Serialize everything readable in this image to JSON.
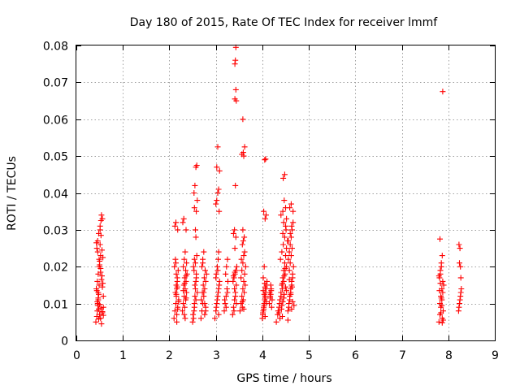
{
  "chart_data": {
    "type": "scatter",
    "title": "Day 180 of 2015, Rate Of TEC Index for receiver lmmf",
    "xlabel": "GPS time / hours",
    "ylabel": "ROTI / TECUs",
    "xlim": [
      0,
      9
    ],
    "ylim": [
      0,
      0.08
    ],
    "xticks": [
      "0",
      "1",
      "2",
      "3",
      "4",
      "5",
      "6",
      "7",
      "8",
      "9"
    ],
    "yticks": [
      "0",
      "0.01",
      "0.02",
      "0.03",
      "0.04",
      "0.05",
      "0.06",
      "0.07",
      "0.08"
    ],
    "grid": true,
    "marker": "+",
    "color": "#ff0000",
    "series": [
      {
        "name": "ROTI",
        "x": [
          0.42,
          0.44,
          0.45,
          0.46,
          0.47,
          0.48,
          0.43,
          0.45,
          0.47,
          0.49,
          0.5,
          0.52,
          0.44,
          0.46,
          0.48,
          0.51,
          0.53,
          0.55,
          0.57,
          0.5,
          0.52,
          0.54,
          0.56,
          0.58,
          0.46,
          0.48,
          0.5,
          0.52,
          0.54,
          0.56,
          0.58,
          0.45,
          0.47,
          0.49,
          0.51,
          0.53,
          0.43,
          0.46,
          0.49,
          0.52,
          0.55,
          0.57,
          0.44,
          0.47,
          0.5,
          0.53,
          0.56,
          0.58,
          0.48,
          0.51,
          0.54,
          0.56,
          2.1,
          2.12,
          2.14,
          2.15,
          2.16,
          2.17,
          2.11,
          2.13,
          2.15,
          2.18,
          2.12,
          2.14,
          2.16,
          2.18,
          2.2,
          2.13,
          2.15,
          2.17,
          2.19,
          2.14,
          2.16,
          2.18,
          2.2,
          2.15,
          2.17,
          2.28,
          2.3,
          2.32,
          2.34,
          2.36,
          2.38,
          2.3,
          2.32,
          2.34,
          2.36,
          2.29,
          2.31,
          2.33,
          2.35,
          2.37,
          2.31,
          2.33,
          2.35,
          2.37,
          2.32,
          2.34,
          2.36,
          2.3,
          2.33,
          2.36,
          2.5,
          2.52,
          2.53,
          2.54,
          2.55,
          2.56,
          2.57,
          2.58,
          2.52,
          2.54,
          2.56,
          2.58,
          2.6,
          2.53,
          2.55,
          2.57,
          2.59,
          2.51,
          2.54,
          2.57,
          2.6,
          2.55,
          2.58,
          2.53,
          2.56,
          2.59,
          2.54,
          2.57,
          2.68,
          2.7,
          2.72,
          2.74,
          2.76,
          2.78,
          2.8,
          2.7,
          2.72,
          2.74,
          2.76,
          2.78,
          2.69,
          2.71,
          2.73,
          2.75,
          2.77,
          2.72,
          2.74,
          2.76,
          2.78,
          2.98,
          3.0,
          3.02,
          3.04,
          3.06,
          3.08,
          3.01,
          3.03,
          3.05,
          3.07,
          3.0,
          3.02,
          3.04,
          3.06,
          3.08,
          3.02,
          3.04,
          3.06,
          3.01,
          3.03,
          3.05,
          3.07,
          3.0,
          3.04,
          3.06,
          3.18,
          3.2,
          3.22,
          3.24,
          3.26,
          3.21,
          3.23,
          3.25,
          3.19,
          3.22,
          3.25,
          3.36,
          3.38,
          3.4,
          3.42,
          3.44,
          3.39,
          3.41,
          3.43,
          3.45,
          3.37,
          3.4,
          3.42,
          3.44,
          3.39,
          3.41,
          3.43,
          3.38,
          3.4,
          3.42,
          3.44,
          3.41,
          3.43,
          3.41,
          3.42,
          3.43,
          3.38,
          3.41,
          3.52,
          3.54,
          3.56,
          3.58,
          3.6,
          3.62,
          3.64,
          3.55,
          3.57,
          3.59,
          3.61,
          3.63,
          3.54,
          3.56,
          3.58,
          3.6,
          3.62,
          3.57,
          3.59,
          3.61,
          3.58,
          3.6,
          3.56,
          3.59,
          3.62,
          3.58,
          3.6,
          3.57,
          4.0,
          4.02,
          4.04,
          4.06,
          4.08,
          4.1,
          4.01,
          4.03,
          4.05,
          4.07,
          4.09,
          4.02,
          4.04,
          4.06,
          4.08,
          4.03,
          4.05,
          4.07,
          4.01,
          4.04,
          4.06,
          4.02,
          4.05,
          4.08,
          4.04,
          4.06,
          4.03,
          4.06,
          4.15,
          4.17,
          4.19,
          4.21,
          4.16,
          4.18,
          4.2,
          4.17,
          4.19,
          4.18,
          4.3,
          4.33,
          4.36,
          4.38,
          4.4,
          4.42,
          4.44,
          4.46,
          4.48,
          4.5,
          4.52,
          4.54,
          4.34,
          4.37,
          4.4,
          4.43,
          4.46,
          4.49,
          4.52,
          4.38,
          4.41,
          4.44,
          4.47,
          4.5,
          4.39,
          4.42,
          4.45,
          4.48,
          4.51,
          4.4,
          4.44,
          4.47,
          4.5,
          4.36,
          4.42,
          4.46,
          4.52,
          4.43,
          4.47,
          4.49,
          4.45,
          4.48,
          4.44,
          4.5,
          4.46,
          4.52,
          4.43,
          4.55,
          4.55,
          4.57,
          4.59,
          4.61,
          4.63,
          4.65,
          4.67,
          4.56,
          4.58,
          4.6,
          4.62,
          4.64,
          4.66,
          4.57,
          4.59,
          4.61,
          4.63,
          4.65,
          4.58,
          4.6,
          4.62,
          4.64,
          4.56,
          4.6,
          4.63,
          4.66,
          4.59,
          4.62,
          4.65,
          4.61,
          4.64,
          4.58,
          4.63,
          4.68,
          7.8,
          7.82,
          7.84,
          7.86,
          7.88,
          7.9,
          7.81,
          7.83,
          7.85,
          7.87,
          7.89,
          7.82,
          7.84,
          7.86,
          7.88,
          7.83,
          7.85,
          7.87,
          7.84,
          7.86,
          7.85,
          7.81,
          7.83,
          7.8,
          7.82,
          7.87,
          7.89,
          7.88,
          8.22,
          8.24,
          8.26,
          8.28,
          8.23,
          8.25,
          8.27,
          8.24,
          8.26,
          8.25,
          8.23,
          8.27
        ],
        "y": [
          0.005,
          0.0065,
          0.008,
          0.0095,
          0.011,
          0.0125,
          0.014,
          0.016,
          0.018,
          0.02,
          0.0215,
          0.023,
          0.025,
          0.027,
          0.029,
          0.031,
          0.0325,
          0.0245,
          0.0225,
          0.0205,
          0.0185,
          0.0165,
          0.0145,
          0.012,
          0.01,
          0.0085,
          0.007,
          0.006,
          0.0045,
          0.0075,
          0.009,
          0.0105,
          0.013,
          0.015,
          0.03,
          0.0285,
          0.0265,
          0.024,
          0.022,
          0.0195,
          0.0175,
          0.0155,
          0.0135,
          0.0115,
          0.0098,
          0.0088,
          0.0078,
          0.0068,
          0.0058,
          0.026,
          0.034,
          0.033,
          0.006,
          0.008,
          0.01,
          0.012,
          0.014,
          0.016,
          0.02,
          0.022,
          0.018,
          0.03,
          0.031,
          0.032,
          0.007,
          0.009,
          0.011,
          0.013,
          0.015,
          0.017,
          0.019,
          0.021,
          0.005,
          0.0085,
          0.0105,
          0.0125,
          0.0145,
          0.008,
          0.01,
          0.012,
          0.014,
          0.016,
          0.018,
          0.02,
          0.022,
          0.024,
          0.03,
          0.032,
          0.033,
          0.009,
          0.011,
          0.013,
          0.015,
          0.017,
          0.019,
          0.021,
          0.007,
          0.006,
          0.0115,
          0.0135,
          0.0155,
          0.0175,
          0.005,
          0.006,
          0.008,
          0.01,
          0.012,
          0.014,
          0.016,
          0.018,
          0.02,
          0.022,
          0.03,
          0.035,
          0.038,
          0.04,
          0.042,
          0.047,
          0.0475,
          0.007,
          0.009,
          0.011,
          0.013,
          0.015,
          0.017,
          0.019,
          0.021,
          0.023,
          0.036,
          0.028,
          0.006,
          0.008,
          0.01,
          0.012,
          0.014,
          0.016,
          0.018,
          0.02,
          0.022,
          0.024,
          0.007,
          0.009,
          0.011,
          0.013,
          0.015,
          0.017,
          0.019,
          0.021,
          0.013,
          0.01,
          0.008,
          0.006,
          0.008,
          0.01,
          0.012,
          0.014,
          0.016,
          0.018,
          0.02,
          0.022,
          0.035,
          0.037,
          0.038,
          0.04,
          0.041,
          0.046,
          0.047,
          0.0525,
          0.007,
          0.009,
          0.011,
          0.013,
          0.015,
          0.017,
          0.019,
          0.024,
          0.008,
          0.01,
          0.012,
          0.014,
          0.016,
          0.018,
          0.02,
          0.022,
          0.011,
          0.009,
          0.013,
          0.007,
          0.009,
          0.011,
          0.013,
          0.015,
          0.017,
          0.018,
          0.019,
          0.02,
          0.016,
          0.014,
          0.012,
          0.01,
          0.008,
          0.025,
          0.028,
          0.029,
          0.03,
          0.042,
          0.065,
          0.0655,
          0.068,
          0.075,
          0.076,
          0.0795,
          0.0175,
          0.0185,
          0.008,
          0.01,
          0.012,
          0.014,
          0.016,
          0.018,
          0.02,
          0.022,
          0.009,
          0.011,
          0.013,
          0.015,
          0.017,
          0.019,
          0.021,
          0.023,
          0.024,
          0.026,
          0.027,
          0.028,
          0.03,
          0.05,
          0.0505,
          0.051,
          0.0525,
          0.06,
          0.0085,
          0.0105,
          0.006,
          0.008,
          0.01,
          0.012,
          0.014,
          0.016,
          0.007,
          0.009,
          0.011,
          0.013,
          0.015,
          0.017,
          0.02,
          0.033,
          0.034,
          0.035,
          0.049,
          0.0492,
          0.0075,
          0.0095,
          0.0115,
          0.0135,
          0.0155,
          0.0105,
          0.0125,
          0.0145,
          0.0085,
          0.0065,
          0.01,
          0.012,
          0.014,
          0.011,
          0.013,
          0.015,
          0.009,
          0.0115,
          0.0135,
          0.0125,
          0.005,
          0.007,
          0.009,
          0.011,
          0.013,
          0.015,
          0.017,
          0.019,
          0.021,
          0.023,
          0.025,
          0.027,
          0.008,
          0.01,
          0.012,
          0.014,
          0.016,
          0.018,
          0.02,
          0.006,
          0.0085,
          0.0105,
          0.0125,
          0.0145,
          0.022,
          0.024,
          0.026,
          0.028,
          0.03,
          0.034,
          0.035,
          0.038,
          0.036,
          0.0075,
          0.0095,
          0.0115,
          0.0135,
          0.0155,
          0.0175,
          0.0195,
          0.044,
          0.045,
          0.029,
          0.031,
          0.032,
          0.033,
          0.0065,
          0.0055,
          0.008,
          0.01,
          0.012,
          0.014,
          0.016,
          0.018,
          0.02,
          0.022,
          0.024,
          0.026,
          0.028,
          0.03,
          0.032,
          0.009,
          0.011,
          0.013,
          0.015,
          0.017,
          0.019,
          0.021,
          0.023,
          0.025,
          0.027,
          0.029,
          0.031,
          0.035,
          0.036,
          0.037,
          0.0105,
          0.0125,
          0.0145,
          0.0165,
          0.0085,
          0.0095,
          0.005,
          0.007,
          0.009,
          0.011,
          0.013,
          0.015,
          0.017,
          0.019,
          0.021,
          0.023,
          0.008,
          0.01,
          0.012,
          0.014,
          0.016,
          0.018,
          0.02,
          0.006,
          0.0075,
          0.0095,
          0.0115,
          0.0135,
          0.0155,
          0.0175,
          0.0275,
          0.0048,
          0.0055,
          0.0675,
          0.008,
          0.01,
          0.012,
          0.014,
          0.009,
          0.011,
          0.013,
          0.021,
          0.02,
          0.025,
          0.026,
          0.017
        ]
      }
    ]
  }
}
